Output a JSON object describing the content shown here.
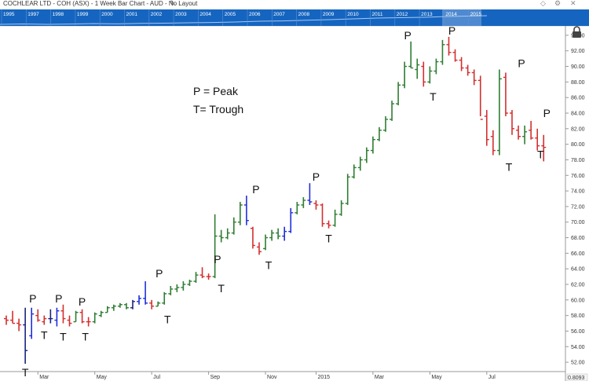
{
  "window": {
    "title": "COCHLEAR LTD - COH (ASX) - 1 Week Bar Chart - AUD - No Layout",
    "icons": [
      "pencil-icon",
      "diamond-icon",
      "gear-icon",
      "close-icon",
      "lock-icon"
    ]
  },
  "navigator": {
    "years": [
      "1995",
      "1997",
      "1998",
      "1999",
      "2000",
      "2001",
      "2002",
      "2003",
      "2004",
      "2005",
      "2006",
      "2007",
      "2008",
      "2009",
      "2010",
      "2011",
      "2012",
      "2013",
      "2014",
      "2015"
    ],
    "colors": {
      "bar": "#1565c0",
      "selection": "#7fa9dc"
    }
  },
  "chart_data": {
    "type": "bar",
    "title": "COCHLEAR LTD - COH (ASX) - 1 Week Bar Chart - AUD - No Layout",
    "xlabel": "",
    "ylabel": "",
    "ylim": [
      50.8,
      95.2
    ],
    "y_ticks": [
      "94.00",
      "92.00",
      "90.00",
      "88.00",
      "86.00",
      "84.00",
      "82.00",
      "80.00",
      "78.00",
      "76.00",
      "74.00",
      "72.00",
      "70.00",
      "68.00",
      "66.00",
      "64.00",
      "62.00",
      "60.00",
      "58.00",
      "56.00",
      "54.00",
      "52.00"
    ],
    "x_ticks": [
      "Mar",
      "May",
      "Jul",
      "Sep",
      "Nov",
      "2015",
      "Mar",
      "May",
      "Jul"
    ],
    "x_tick_weeks": [
      5,
      14,
      23,
      32,
      41,
      49,
      58,
      67,
      76
    ],
    "bottom_right_readout": "0.8093",
    "colors": {
      "up": "#2e7d32",
      "down": "#d32f2f",
      "neutral": "#1a237e",
      "highlight": "#1f2fd8"
    },
    "legend_notes": [
      "P = Peak",
      "T= Trough"
    ],
    "ohlc_bars": [
      {
        "h": 58.0,
        "l": 56.8,
        "o": 57.6,
        "c": 57.4,
        "color": "down"
      },
      {
        "h": 58.6,
        "l": 57.0,
        "o": 57.4,
        "c": 57.0,
        "color": "down"
      },
      {
        "h": 57.6,
        "l": 56.0,
        "o": 57.0,
        "c": 56.8,
        "color": "down"
      },
      {
        "h": 59.0,
        "l": 51.8,
        "o": 56.8,
        "c": 53.5,
        "color": "neutral"
      },
      {
        "h": 59.0,
        "l": 55.0,
        "o": 55.4,
        "c": 58.2,
        "color": "highlight"
      },
      {
        "h": 58.8,
        "l": 57.2,
        "o": 58.0,
        "c": 57.4,
        "color": "down"
      },
      {
        "h": 58.0,
        "l": 56.8,
        "o": 57.2,
        "c": 57.6,
        "color": "down"
      },
      {
        "h": 58.8,
        "l": 57.0,
        "o": 57.6,
        "c": 57.6,
        "color": "neutral"
      },
      {
        "h": 59.0,
        "l": 56.6,
        "o": 57.4,
        "c": 58.6,
        "color": "highlight"
      },
      {
        "h": 59.4,
        "l": 57.0,
        "o": 58.6,
        "c": 57.6,
        "color": "down"
      },
      {
        "h": 58.0,
        "l": 56.6,
        "o": 57.4,
        "c": 57.0,
        "color": "down"
      },
      {
        "h": 58.6,
        "l": 57.2,
        "o": 57.2,
        "c": 58.4,
        "color": "up"
      },
      {
        "h": 58.8,
        "l": 57.0,
        "o": 58.4,
        "c": 57.2,
        "color": "down"
      },
      {
        "h": 57.8,
        "l": 56.6,
        "o": 57.2,
        "c": 57.2,
        "color": "down"
      },
      {
        "h": 58.4,
        "l": 57.0,
        "o": 57.2,
        "c": 58.2,
        "color": "up"
      },
      {
        "h": 58.6,
        "l": 57.8,
        "o": 58.0,
        "c": 58.4,
        "color": "up"
      },
      {
        "h": 59.2,
        "l": 58.4,
        "o": 58.4,
        "c": 59.0,
        "color": "up"
      },
      {
        "h": 59.4,
        "l": 58.6,
        "o": 59.0,
        "c": 59.2,
        "color": "up"
      },
      {
        "h": 59.6,
        "l": 59.0,
        "o": 59.2,
        "c": 59.4,
        "color": "up"
      },
      {
        "h": 59.6,
        "l": 58.8,
        "o": 59.4,
        "c": 59.0,
        "color": "up"
      },
      {
        "h": 60.0,
        "l": 58.8,
        "o": 59.0,
        "c": 59.8,
        "color": "neutral"
      },
      {
        "h": 60.6,
        "l": 59.4,
        "o": 59.8,
        "c": 60.2,
        "color": "highlight"
      },
      {
        "h": 62.4,
        "l": 59.4,
        "o": 60.2,
        "c": 59.6,
        "color": "highlight"
      },
      {
        "h": 60.0,
        "l": 58.8,
        "o": 59.6,
        "c": 59.2,
        "color": "down"
      },
      {
        "h": 59.8,
        "l": 59.2,
        "o": 59.2,
        "c": 59.6,
        "color": "up"
      },
      {
        "h": 61.0,
        "l": 59.4,
        "o": 59.6,
        "c": 60.8,
        "color": "up"
      },
      {
        "h": 61.8,
        "l": 60.6,
        "o": 60.8,
        "c": 61.4,
        "color": "up"
      },
      {
        "h": 62.0,
        "l": 61.0,
        "o": 61.4,
        "c": 61.6,
        "color": "up"
      },
      {
        "h": 62.4,
        "l": 61.2,
        "o": 61.6,
        "c": 62.0,
        "color": "up"
      },
      {
        "h": 62.6,
        "l": 61.8,
        "o": 62.0,
        "c": 62.4,
        "color": "up"
      },
      {
        "h": 63.6,
        "l": 62.2,
        "o": 62.4,
        "c": 63.2,
        "color": "up"
      },
      {
        "h": 64.2,
        "l": 62.8,
        "o": 63.2,
        "c": 63.0,
        "color": "down"
      },
      {
        "h": 63.4,
        "l": 62.6,
        "o": 63.0,
        "c": 63.0,
        "color": "down"
      },
      {
        "h": 71.0,
        "l": 62.8,
        "o": 63.0,
        "c": 68.2,
        "color": "up"
      },
      {
        "h": 69.0,
        "l": 67.4,
        "o": 68.2,
        "c": 68.0,
        "color": "up"
      },
      {
        "h": 69.2,
        "l": 67.8,
        "o": 68.0,
        "c": 68.6,
        "color": "up"
      },
      {
        "h": 70.6,
        "l": 68.4,
        "o": 68.6,
        "c": 70.0,
        "color": "up"
      },
      {
        "h": 72.6,
        "l": 69.6,
        "o": 70.0,
        "c": 72.2,
        "color": "up"
      },
      {
        "h": 73.4,
        "l": 69.6,
        "o": 72.2,
        "c": 70.2,
        "color": "highlight"
      },
      {
        "h": 69.4,
        "l": 66.6,
        "o": 69.2,
        "c": 67.0,
        "color": "down"
      },
      {
        "h": 67.4,
        "l": 65.8,
        "o": 66.8,
        "c": 66.2,
        "color": "down"
      },
      {
        "h": 68.4,
        "l": 66.4,
        "o": 66.6,
        "c": 68.0,
        "color": "up"
      },
      {
        "h": 69.0,
        "l": 67.6,
        "o": 68.0,
        "c": 68.6,
        "color": "up"
      },
      {
        "h": 69.2,
        "l": 67.8,
        "o": 68.6,
        "c": 68.2,
        "color": "up"
      },
      {
        "h": 69.4,
        "l": 67.6,
        "o": 68.2,
        "c": 68.8,
        "color": "highlight"
      },
      {
        "h": 71.8,
        "l": 68.6,
        "o": 68.8,
        "c": 71.2,
        "color": "highlight"
      },
      {
        "h": 72.6,
        "l": 71.0,
        "o": 71.2,
        "c": 72.2,
        "color": "up"
      },
      {
        "h": 73.2,
        "l": 71.8,
        "o": 72.2,
        "c": 72.8,
        "color": "up"
      },
      {
        "h": 75.0,
        "l": 72.2,
        "o": 72.8,
        "c": 72.6,
        "color": "highlight"
      },
      {
        "h": 72.8,
        "l": 71.6,
        "o": 72.4,
        "c": 72.2,
        "color": "down"
      },
      {
        "h": 72.4,
        "l": 69.4,
        "o": 72.2,
        "c": 69.8,
        "color": "down"
      },
      {
        "h": 70.2,
        "l": 69.2,
        "o": 69.8,
        "c": 69.6,
        "color": "down"
      },
      {
        "h": 71.6,
        "l": 69.4,
        "o": 69.6,
        "c": 71.0,
        "color": "up"
      },
      {
        "h": 72.8,
        "l": 70.8,
        "o": 71.0,
        "c": 72.4,
        "color": "up"
      },
      {
        "h": 76.2,
        "l": 72.2,
        "o": 72.4,
        "c": 75.8,
        "color": "up"
      },
      {
        "h": 77.4,
        "l": 75.6,
        "o": 75.8,
        "c": 77.0,
        "color": "up"
      },
      {
        "h": 78.4,
        "l": 76.6,
        "o": 77.0,
        "c": 78.0,
        "color": "up"
      },
      {
        "h": 79.6,
        "l": 77.6,
        "o": 78.0,
        "c": 79.2,
        "color": "up"
      },
      {
        "h": 81.0,
        "l": 78.8,
        "o": 79.2,
        "c": 80.6,
        "color": "up"
      },
      {
        "h": 82.2,
        "l": 80.4,
        "o": 80.6,
        "c": 81.8,
        "color": "up"
      },
      {
        "h": 83.6,
        "l": 81.6,
        "o": 81.8,
        "c": 83.2,
        "color": "up"
      },
      {
        "h": 85.6,
        "l": 83.0,
        "o": 83.2,
        "c": 85.2,
        "color": "up"
      },
      {
        "h": 88.0,
        "l": 85.0,
        "o": 85.2,
        "c": 87.6,
        "color": "up"
      },
      {
        "h": 90.6,
        "l": 87.2,
        "o": 87.6,
        "c": 90.0,
        "color": "up"
      },
      {
        "h": 93.2,
        "l": 89.8,
        "o": 90.0,
        "c": 89.8,
        "color": "up"
      },
      {
        "h": 91.0,
        "l": 88.4,
        "o": 89.6,
        "c": 90.2,
        "color": "up"
      },
      {
        "h": 90.6,
        "l": 87.4,
        "o": 90.0,
        "c": 88.0,
        "color": "down"
      },
      {
        "h": 90.0,
        "l": 87.8,
        "o": 88.0,
        "c": 89.4,
        "color": "up"
      },
      {
        "h": 91.0,
        "l": 89.0,
        "o": 89.4,
        "c": 90.6,
        "color": "up"
      },
      {
        "h": 93.4,
        "l": 90.2,
        "o": 90.6,
        "c": 92.8,
        "color": "up"
      },
      {
        "h": 93.8,
        "l": 91.4,
        "o": 92.8,
        "c": 91.8,
        "color": "down"
      },
      {
        "h": 92.2,
        "l": 90.6,
        "o": 91.8,
        "c": 90.8,
        "color": "down"
      },
      {
        "h": 91.2,
        "l": 89.4,
        "o": 90.8,
        "c": 89.8,
        "color": "down"
      },
      {
        "h": 90.2,
        "l": 88.8,
        "o": 89.8,
        "c": 89.2,
        "color": "down"
      },
      {
        "h": 89.6,
        "l": 87.6,
        "o": 89.2,
        "c": 88.2,
        "color": "down"
      },
      {
        "h": 88.8,
        "l": 83.6,
        "o": 88.2,
        "c": 83.2,
        "color": "down"
      },
      {
        "h": 84.4,
        "l": 79.8,
        "o": 83.6,
        "c": 80.6,
        "color": "down"
      },
      {
        "h": 81.8,
        "l": 78.6,
        "o": 81.0,
        "c": 79.2,
        "color": "down"
      },
      {
        "h": 89.6,
        "l": 78.6,
        "o": 79.2,
        "c": 88.4,
        "color": "up"
      },
      {
        "h": 89.2,
        "l": 83.6,
        "o": 88.6,
        "c": 84.0,
        "color": "down"
      },
      {
        "h": 84.4,
        "l": 81.2,
        "o": 84.0,
        "c": 82.0,
        "color": "down"
      },
      {
        "h": 82.4,
        "l": 80.6,
        "o": 81.8,
        "c": 81.0,
        "color": "down"
      },
      {
        "h": 82.4,
        "l": 80.0,
        "o": 81.0,
        "c": 81.6,
        "color": "up"
      },
      {
        "h": 83.0,
        "l": 80.6,
        "o": 81.8,
        "c": 80.8,
        "color": "down"
      },
      {
        "h": 82.0,
        "l": 79.2,
        "o": 80.8,
        "c": 79.8,
        "color": "down"
      },
      {
        "h": 81.2,
        "l": 77.8,
        "o": 79.8,
        "c": 79.6,
        "color": "down"
      }
    ],
    "annotations": [
      {
        "text": "P",
        "week": 4.2,
        "price": 59.6
      },
      {
        "text": "T",
        "week": 3,
        "price": 51.4
      },
      {
        "text": "T",
        "week": 6,
        "price": 56.2
      },
      {
        "text": "P",
        "week": 8.3,
        "price": 59.6
      },
      {
        "text": "T",
        "week": 9,
        "price": 56.0
      },
      {
        "text": "P",
        "week": 12,
        "price": 59.2
      },
      {
        "text": "T",
        "week": 12.5,
        "price": 56.0
      },
      {
        "text": "P",
        "week": 24.2,
        "price": 62.8
      },
      {
        "text": "T",
        "week": 25.5,
        "price": 58.2
      },
      {
        "text": "P",
        "week": 33.4,
        "price": 64.6
      },
      {
        "text": "T",
        "week": 34.0,
        "price": 62.2
      },
      {
        "text": "P",
        "week": 39.5,
        "price": 73.6
      },
      {
        "text": "T",
        "week": 41.5,
        "price": 65.2
      },
      {
        "text": "P",
        "week": 49.0,
        "price": 75.2
      },
      {
        "text": "T",
        "week": 51.0,
        "price": 68.6
      },
      {
        "text": "P",
        "week": 63.5,
        "price": 93.4
      },
      {
        "text": "T",
        "week": 67.5,
        "price": 86.8
      },
      {
        "text": "P",
        "week": 70.5,
        "price": 94.0
      },
      {
        "text": "T",
        "week": 79.5,
        "price": 77.8
      },
      {
        "text": "P",
        "week": 81.5,
        "price": 89.8
      },
      {
        "text": "T",
        "week": 84.5,
        "price": 79.4
      },
      {
        "text": "P",
        "week": 85.5,
        "price": 83.4
      }
    ]
  }
}
